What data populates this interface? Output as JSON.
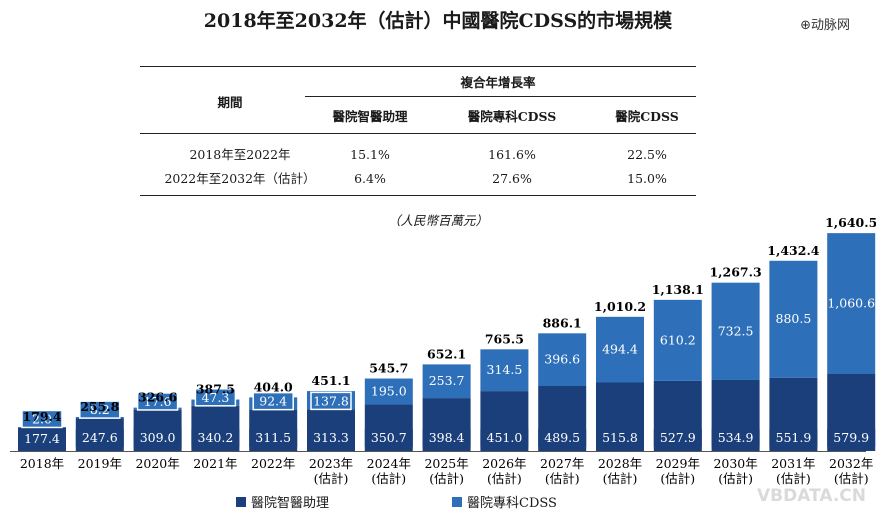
{
  "title": "2018年至2032年（估計）中國醫院CDSS的市場規模",
  "watermark_top": "⊕动脉网",
  "watermark_bottom": "VBDATA.CN",
  "cagr_table": {
    "group_header": "複合年增長率",
    "period_header": "期間",
    "columns": [
      "醫院智醫助理",
      "醫院專科CDSS",
      "醫院CDSS"
    ],
    "rows": [
      {
        "period": "2018年至2022年",
        "values": [
          "15.1%",
          "161.6%",
          "22.5%"
        ]
      },
      {
        "period": "2022年至2032年（估計）",
        "values": [
          "6.4%",
          "27.6%",
          "15.0%"
        ]
      }
    ]
  },
  "unit_label": "（人民幣百萬元）",
  "colors": {
    "bottom": "#1b3f7a",
    "top": "#2d6fb8"
  },
  "chart_data": {
    "type": "bar",
    "stacked": true,
    "categories": [
      "2018年",
      "2019年",
      "2020年",
      "2021年",
      "2022年",
      "2023年\n(估計)",
      "2024年\n(估計)",
      "2025年\n(估計)",
      "2026年\n(估計)",
      "2027年\n(估計)",
      "2028年\n(估計)",
      "2029年\n(估計)",
      "2030年\n(估計)",
      "2031年\n(估計)",
      "2032年\n(估計)"
    ],
    "series": [
      {
        "name": "醫院智醫助理",
        "values": [
          177.4,
          247.6,
          309.0,
          340.2,
          311.5,
          313.3,
          350.7,
          398.4,
          451.0,
          489.5,
          515.8,
          527.9,
          534.9,
          551.9,
          579.9
        ]
      },
      {
        "name": "醫院專科CDSS",
        "values": [
          2.0,
          8.2,
          17.6,
          47.3,
          92.4,
          137.8,
          195.0,
          253.7,
          314.5,
          396.6,
          494.4,
          610.2,
          732.5,
          880.5,
          1060.6
        ]
      }
    ],
    "data_labels": {
      "bottom": [
        "177.4",
        "247.6",
        "309.0",
        "340.2",
        "311.5",
        "313.3",
        "350.7",
        "398.4",
        "451.0",
        "489.5",
        "515.8",
        "527.9",
        "534.9",
        "551.9",
        "579.9"
      ],
      "top": [
        "2.0",
        "8.2",
        "17.6",
        "47.3",
        "92.4",
        "137.8",
        "195.0",
        "253.7",
        "314.5",
        "396.6",
        "494.4",
        "610.2",
        "732.5",
        "880.5",
        "1,060.6"
      ],
      "total": [
        "179.4",
        "255.8",
        "326.6",
        "387.5",
        "404.0",
        "451.1",
        "545.7",
        "652.1",
        "765.5",
        "886.1",
        "1,010.2",
        "1,138.1",
        "1,267.3",
        "1,432.4",
        "1,640.5"
      ]
    },
    "legend_position": "bottom"
  }
}
